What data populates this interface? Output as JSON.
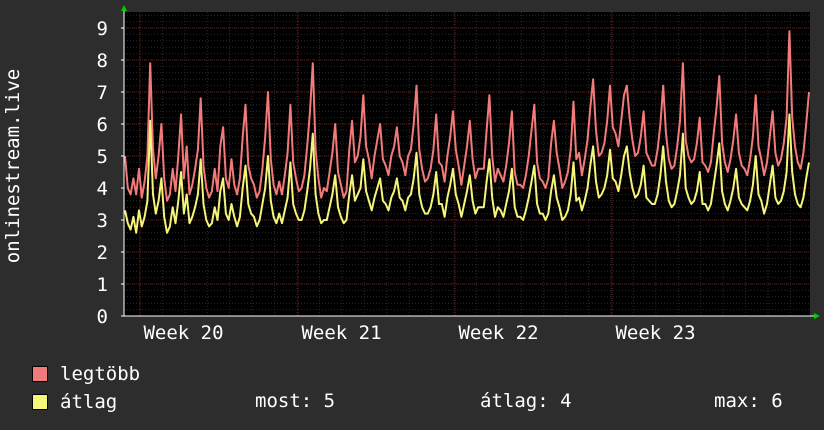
{
  "chart_data": {
    "type": "line",
    "ylabel": "onlinestream.live",
    "ylim": [
      0,
      9.5
    ],
    "yticks": [
      0,
      1,
      2,
      3,
      4,
      5,
      6,
      7,
      8,
      9
    ],
    "x_tick_labels": [
      "Week 20",
      "Week 21",
      "Week 22",
      "Week 23"
    ],
    "grid": true,
    "colors": {
      "background": "#2d2d2d",
      "plot": "#000000",
      "grid_major": "#5a2020",
      "grid_minor": "#2a2a2a",
      "axis": "#ffffff",
      "arrow": "#00cc00"
    },
    "series": [
      {
        "name": "legtöbb",
        "color": "#f27a7a",
        "values": [
          5.0,
          4.0,
          3.8,
          4.3,
          3.8,
          4.6,
          3.7,
          4.2,
          5.0,
          7.9,
          5.2,
          4.3,
          5.0,
          6.0,
          4.3,
          3.6,
          3.8,
          4.6,
          3.9,
          5.0,
          6.3,
          4.3,
          5.3,
          3.8,
          4.1,
          4.6,
          5.2,
          6.8,
          4.7,
          4.0,
          3.7,
          3.9,
          4.6,
          3.9,
          5.3,
          5.9,
          4.3,
          4.0,
          4.9,
          4.1,
          3.8,
          4.3,
          5.6,
          6.6,
          4.7,
          4.3,
          4.1,
          3.7,
          3.9,
          4.6,
          5.6,
          7.0,
          4.9,
          4.1,
          3.8,
          4.2,
          3.8,
          4.4,
          5.1,
          6.6,
          4.8,
          4.3,
          3.9,
          4.0,
          4.4,
          5.3,
          6.4,
          7.9,
          5.2,
          4.3,
          3.7,
          4.0,
          3.9,
          4.5,
          5.1,
          6.0,
          4.5,
          4.1,
          3.7,
          3.9,
          5.2,
          6.1,
          4.8,
          5.0,
          5.6,
          6.9,
          5.3,
          4.9,
          4.3,
          5.0,
          5.5,
          6.0,
          4.9,
          4.7,
          4.4,
          5.0,
          5.3,
          5.9,
          5.0,
          4.8,
          4.4,
          5.0,
          5.2,
          6.0,
          7.2,
          5.2,
          4.6,
          4.2,
          4.3,
          4.6,
          5.2,
          6.3,
          4.8,
          4.7,
          4.2,
          5.0,
          5.6,
          6.4,
          5.2,
          4.7,
          4.1,
          4.7,
          5.3,
          6.1,
          4.9,
          4.3,
          4.6,
          4.6,
          4.6,
          5.8,
          6.9,
          5.0,
          4.2,
          4.6,
          4.4,
          4.2,
          4.7,
          5.4,
          6.4,
          4.5,
          4.1,
          4.1,
          4.0,
          4.4,
          5.0,
          5.8,
          6.6,
          4.8,
          4.3,
          4.2,
          4.0,
          4.3,
          5.4,
          6.1,
          5.1,
          4.6,
          4.0,
          4.2,
          4.5,
          5.2,
          6.7,
          4.9,
          5.1,
          4.4,
          4.9,
          5.5,
          6.5,
          7.4,
          5.8,
          5.0,
          5.1,
          5.4,
          6.1,
          7.2,
          5.9,
          5.7,
          5.3,
          6.1,
          6.9,
          7.2,
          6.2,
          5.5,
          5.0,
          5.1,
          5.6,
          6.4,
          5.1,
          4.9,
          4.7,
          4.7,
          5.2,
          6.0,
          7.2,
          5.7,
          4.9,
          4.6,
          4.7,
          5.3,
          6.1,
          7.9,
          5.5,
          5.0,
          4.8,
          4.9,
          5.4,
          6.2,
          4.8,
          4.7,
          4.5,
          4.8,
          5.7,
          6.5,
          7.5,
          5.4,
          4.8,
          4.5,
          4.9,
          5.5,
          6.3,
          5.1,
          4.7,
          4.6,
          4.4,
          4.9,
          5.6,
          6.9,
          5.3,
          4.9,
          4.4,
          4.8,
          5.6,
          6.4,
          5.1,
          4.7,
          4.9,
          5.4,
          6.2,
          8.9,
          6.2,
          5.3,
          4.8,
          4.6,
          5.1,
          6.0,
          7.0
        ]
      },
      {
        "name": "átlag",
        "color": "#f5f57a",
        "values": [
          3.3,
          2.9,
          2.7,
          3.1,
          2.6,
          3.3,
          2.8,
          3.1,
          3.6,
          6.1,
          3.8,
          3.2,
          3.6,
          4.3,
          3.1,
          2.6,
          2.8,
          3.4,
          2.9,
          3.6,
          4.5,
          3.2,
          3.8,
          2.9,
          3.1,
          3.4,
          3.8,
          4.9,
          3.5,
          3.0,
          2.8,
          2.9,
          3.4,
          3.0,
          3.9,
          4.3,
          3.2,
          3.0,
          3.5,
          3.1,
          2.8,
          3.1,
          4.0,
          4.7,
          3.5,
          3.2,
          3.1,
          2.8,
          3.0,
          3.5,
          4.0,
          5.0,
          3.6,
          3.1,
          2.9,
          3.2,
          2.9,
          3.3,
          3.7,
          4.8,
          3.5,
          3.2,
          3.0,
          3.0,
          3.3,
          3.9,
          4.6,
          5.7,
          3.8,
          3.2,
          2.9,
          3.0,
          3.0,
          3.4,
          3.8,
          4.4,
          3.4,
          3.1,
          2.9,
          3.0,
          3.8,
          4.4,
          3.6,
          3.8,
          4.0,
          4.9,
          3.9,
          3.6,
          3.3,
          3.7,
          4.0,
          4.3,
          3.6,
          3.5,
          3.3,
          3.7,
          3.9,
          4.3,
          3.7,
          3.6,
          3.3,
          3.7,
          3.8,
          4.3,
          5.1,
          3.8,
          3.4,
          3.2,
          3.2,
          3.4,
          3.8,
          4.5,
          3.5,
          3.5,
          3.1,
          3.7,
          4.1,
          4.6,
          3.8,
          3.5,
          3.1,
          3.5,
          3.9,
          4.4,
          3.6,
          3.2,
          3.4,
          3.4,
          3.4,
          4.2,
          4.9,
          3.7,
          3.1,
          3.4,
          3.3,
          3.1,
          3.5,
          3.9,
          4.6,
          3.4,
          3.1,
          3.1,
          3.0,
          3.3,
          3.7,
          4.2,
          4.7,
          3.5,
          3.2,
          3.2,
          3.0,
          3.2,
          3.9,
          4.4,
          3.7,
          3.4,
          3.0,
          3.1,
          3.3,
          3.8,
          4.8,
          3.6,
          3.7,
          3.3,
          3.6,
          4.0,
          4.7,
          5.3,
          4.2,
          3.7,
          3.8,
          4.0,
          4.4,
          5.2,
          4.3,
          4.2,
          3.9,
          4.4,
          5.0,
          5.3,
          4.5,
          4.0,
          3.7,
          3.8,
          4.1,
          4.7,
          3.7,
          3.6,
          3.5,
          3.5,
          3.8,
          4.4,
          5.3,
          4.2,
          3.6,
          3.4,
          3.5,
          3.9,
          4.4,
          5.7,
          4.0,
          3.7,
          3.5,
          3.6,
          3.9,
          4.5,
          3.5,
          3.5,
          3.3,
          3.5,
          4.1,
          4.7,
          5.4,
          3.9,
          3.5,
          3.3,
          3.6,
          4.0,
          4.6,
          3.7,
          3.5,
          3.4,
          3.3,
          3.6,
          4.1,
          5.0,
          3.8,
          3.6,
          3.2,
          3.5,
          4.1,
          4.7,
          3.7,
          3.5,
          3.6,
          3.9,
          4.5,
          6.3,
          4.5,
          3.8,
          3.5,
          3.4,
          3.7,
          4.3,
          4.8
        ]
      }
    ]
  },
  "legend": {
    "max_label": "legtöbb",
    "avg_label": "átlag",
    "stats": {
      "now": "most: 5",
      "avg": "átlag: 4",
      "max": "max: 6"
    }
  }
}
